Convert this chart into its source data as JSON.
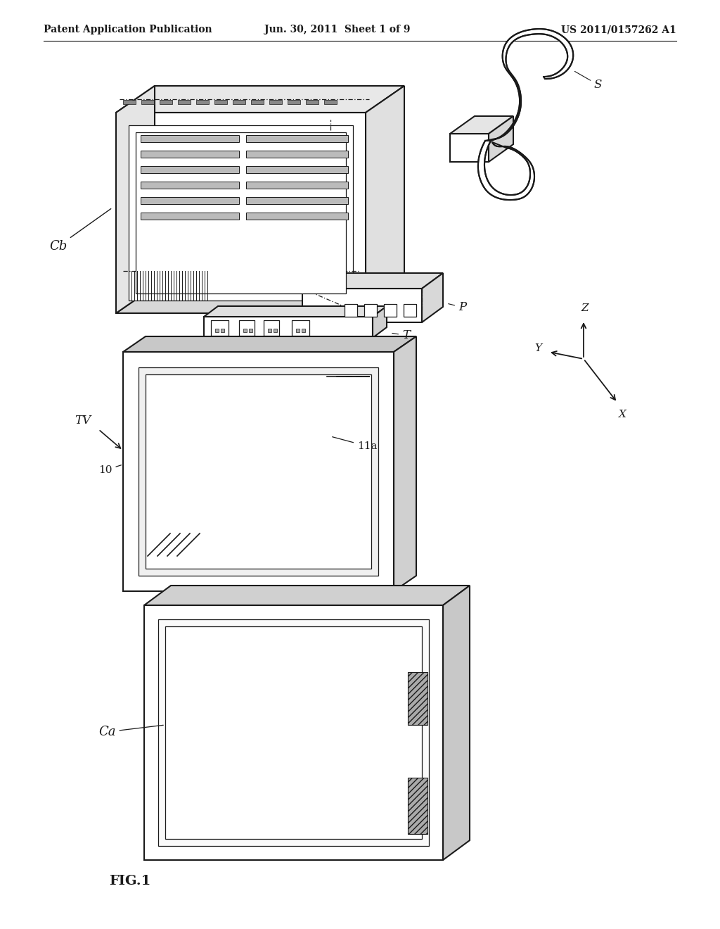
{
  "background_color": "#ffffff",
  "header_left": "Patent Application Publication",
  "header_center": "Jun. 30, 2011  Sheet 1 of 9",
  "header_right": "US 2011/0157262 A1",
  "footer_label": "FIG.1",
  "line_color": "#1a1a1a",
  "header_fontsize": 11,
  "label_fontsize": 12
}
